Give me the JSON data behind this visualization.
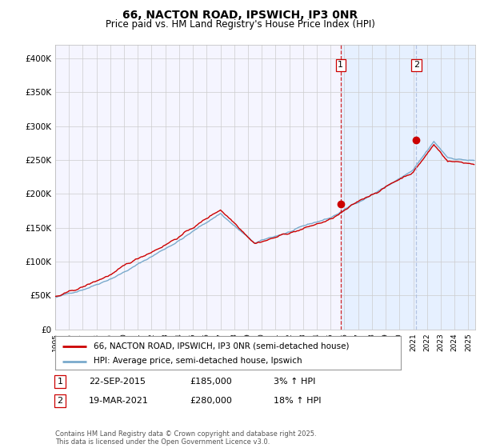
{
  "title": "66, NACTON ROAD, IPSWICH, IP3 0NR",
  "subtitle": "Price paid vs. HM Land Registry's House Price Index (HPI)",
  "legend_label_red": "66, NACTON ROAD, IPSWICH, IP3 0NR (semi-detached house)",
  "legend_label_blue": "HPI: Average price, semi-detached house, Ipswich",
  "annotation1_date": "22-SEP-2015",
  "annotation1_price": "£185,000",
  "annotation1_hpi": "3% ↑ HPI",
  "annotation2_date": "19-MAR-2021",
  "annotation2_price": "£280,000",
  "annotation2_hpi": "18% ↑ HPI",
  "footnote": "Contains HM Land Registry data © Crown copyright and database right 2025.\nThis data is licensed under the Open Government Licence v3.0.",
  "red_color": "#cc0000",
  "blue_color": "#7aaacc",
  "blue_fill_color": "#ddeeff",
  "dashed_red_color": "#cc0000",
  "dashed_blue_color": "#aabbdd",
  "grid_color": "#cccccc",
  "bg_color": "#ffffff",
  "plot_bg_color": "#f5f5ff",
  "ylim": [
    0,
    420000
  ],
  "ytick_values": [
    0,
    50000,
    100000,
    150000,
    200000,
    250000,
    300000,
    350000,
    400000
  ],
  "ytick_labels": [
    "£0",
    "£50K",
    "£100K",
    "£150K",
    "£200K",
    "£250K",
    "£300K",
    "£350K",
    "£400K"
  ],
  "sale1_year": 2015.73,
  "sale1_price": 185000,
  "sale2_year": 2021.22,
  "sale2_price": 280000,
  "xmin": 1995.0,
  "xmax": 2025.5
}
